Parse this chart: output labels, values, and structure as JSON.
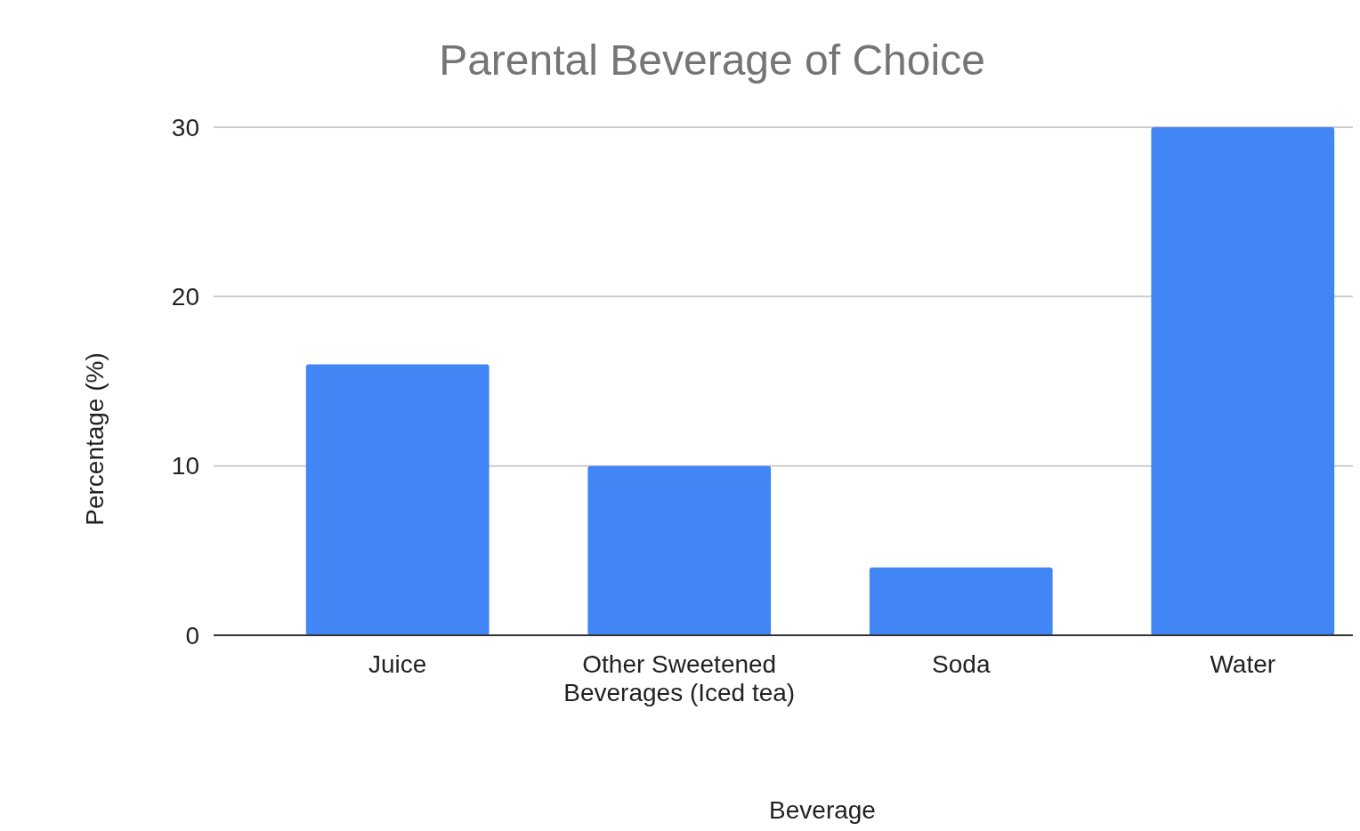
{
  "chart_data": {
    "type": "bar",
    "title": "Parental Beverage of Choice",
    "xlabel": "Beverage",
    "ylabel": "Percentage (%)",
    "categories": [
      "Juice",
      "Other Sweetened Beverages (Iced tea)",
      "Soda",
      "Water"
    ],
    "values": [
      16,
      10,
      4,
      30
    ],
    "color": "#4285f4",
    "ylim": [
      0,
      30
    ],
    "yticks": [
      0,
      10,
      20,
      30
    ],
    "grid": true
  }
}
